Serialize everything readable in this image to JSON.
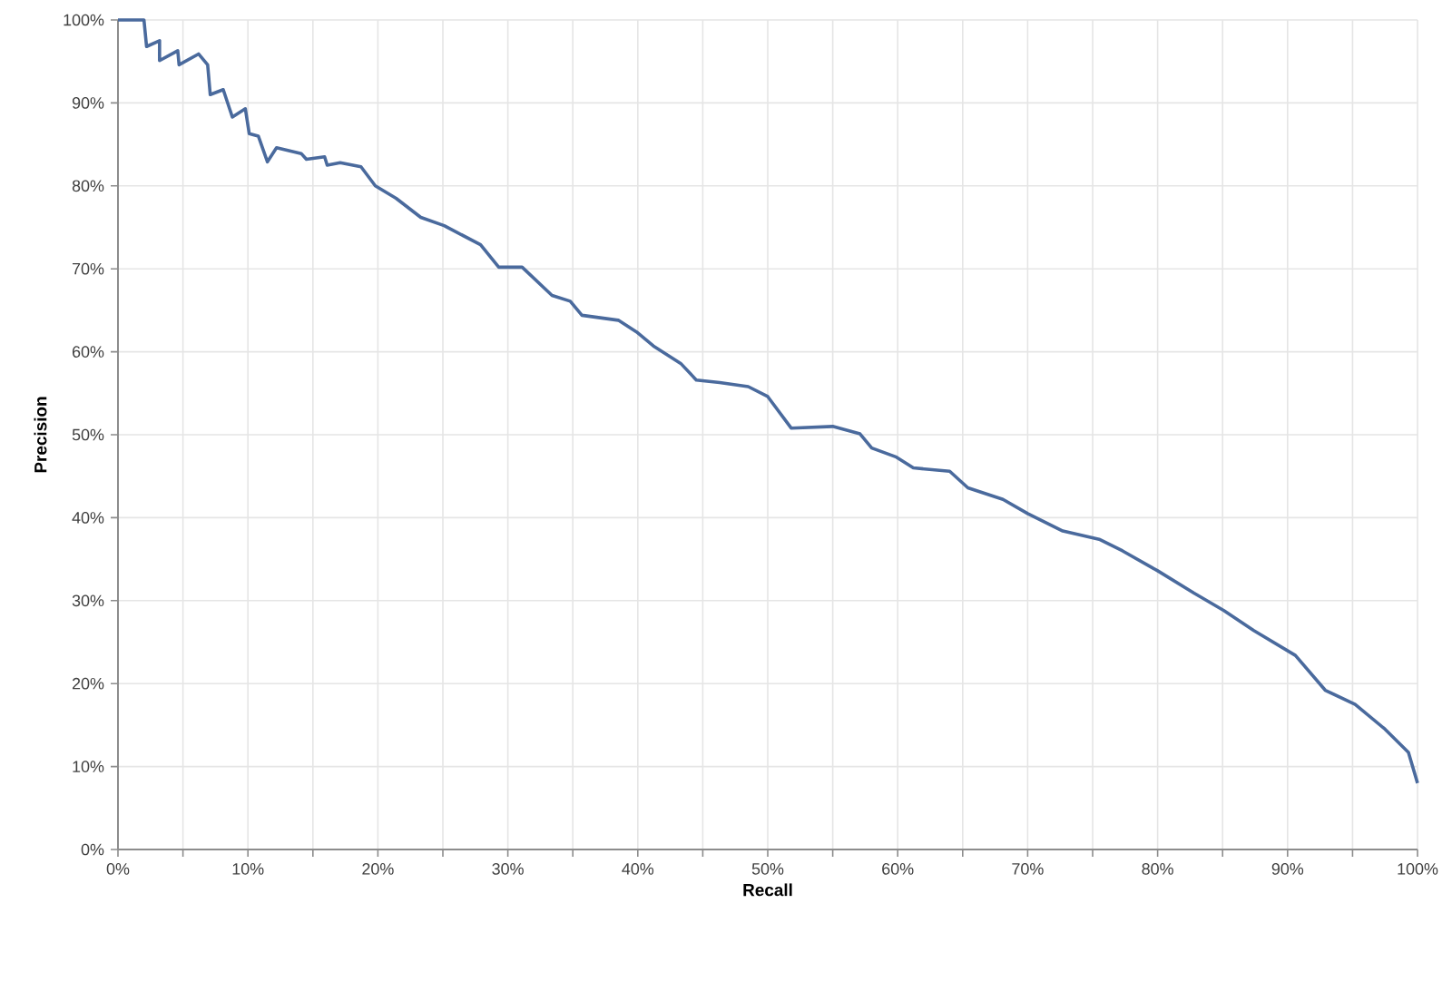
{
  "chart_data": {
    "type": "line",
    "xlabel": "Recall",
    "ylabel": "Precision",
    "x": [
      0,
      2,
      2.2,
      3.2,
      3.2,
      4.6,
      4.7,
      6.2,
      6.9,
      7.1,
      8.1,
      8.8,
      9.8,
      10.1,
      10.8,
      11.5,
      12.2,
      14.1,
      14.5,
      15.9,
      16.1,
      17.1,
      18.7,
      19.8,
      21.4,
      23.3,
      25.1,
      27.9,
      29.3,
      31.1,
      33.4,
      34.8,
      35.7,
      38.5,
      39.9,
      41.2,
      43.3,
      44.5,
      46.3,
      48.5,
      50,
      51.8,
      55,
      57.1,
      58,
      59.9,
      61.2,
      64,
      65.4,
      68.1,
      70,
      72.7,
      75.5,
      77.3,
      80,
      82.8,
      85.1,
      87.4,
      90.6,
      92.9,
      95.2,
      97.5,
      99.3,
      100
    ],
    "series": [
      {
        "color": "#4a6a9d",
        "values": [
          100,
          100,
          96.8,
          97.5,
          95.1,
          96.3,
          94.6,
          95.9,
          94.6,
          91,
          91.6,
          88.3,
          89.3,
          86.3,
          86,
          82.9,
          84.6,
          83.9,
          83.2,
          83.5,
          82.5,
          82.8,
          82.3,
          80,
          78.5,
          76.2,
          75.2,
          72.9,
          70.2,
          70.2,
          66.8,
          66.1,
          64.4,
          63.8,
          62.4,
          60.7,
          58.6,
          56.6,
          56.3,
          55.8,
          54.6,
          50.8,
          51,
          50.1,
          48.4,
          47.3,
          46,
          45.6,
          43.6,
          42.2,
          40.5,
          38.4,
          37.4,
          36,
          33.6,
          30.9,
          28.8,
          26.4,
          23.4,
          19.2,
          17.5,
          14.5,
          11.7,
          8
        ]
      }
    ],
    "xlim": [
      0,
      100
    ],
    "ylim": [
      0,
      100
    ],
    "xticks": [
      {
        "value": 0,
        "label": "0%"
      },
      {
        "value": 5,
        "label": null
      },
      {
        "value": 10,
        "label": "10%"
      },
      {
        "value": 15,
        "label": null
      },
      {
        "value": 20,
        "label": "20%"
      },
      {
        "value": 25,
        "label": null
      },
      {
        "value": 30,
        "label": "30%"
      },
      {
        "value": 35,
        "label": null
      },
      {
        "value": 40,
        "label": "40%"
      },
      {
        "value": 45,
        "label": null
      },
      {
        "value": 50,
        "label": "50%"
      },
      {
        "value": 55,
        "label": null
      },
      {
        "value": 60,
        "label": "60%"
      },
      {
        "value": 65,
        "label": null
      },
      {
        "value": 70,
        "label": "70%"
      },
      {
        "value": 75,
        "label": null
      },
      {
        "value": 80,
        "label": "80%"
      },
      {
        "value": 85,
        "label": null
      },
      {
        "value": 90,
        "label": "90%"
      },
      {
        "value": 95,
        "label": null
      },
      {
        "value": 100,
        "label": "100%"
      }
    ],
    "yticks": [
      {
        "value": 0,
        "label": "0%"
      },
      {
        "value": 10,
        "label": "10%"
      },
      {
        "value": 20,
        "label": "20%"
      },
      {
        "value": 30,
        "label": "30%"
      },
      {
        "value": 40,
        "label": "40%"
      },
      {
        "value": 50,
        "label": "50%"
      },
      {
        "value": 60,
        "label": "60%"
      },
      {
        "value": 70,
        "label": "70%"
      },
      {
        "value": 80,
        "label": "80%"
      },
      {
        "value": 90,
        "label": "90%"
      },
      {
        "value": 100,
        "label": "100%"
      }
    ],
    "grid": true,
    "marker": "none",
    "line_style": "solid"
  }
}
